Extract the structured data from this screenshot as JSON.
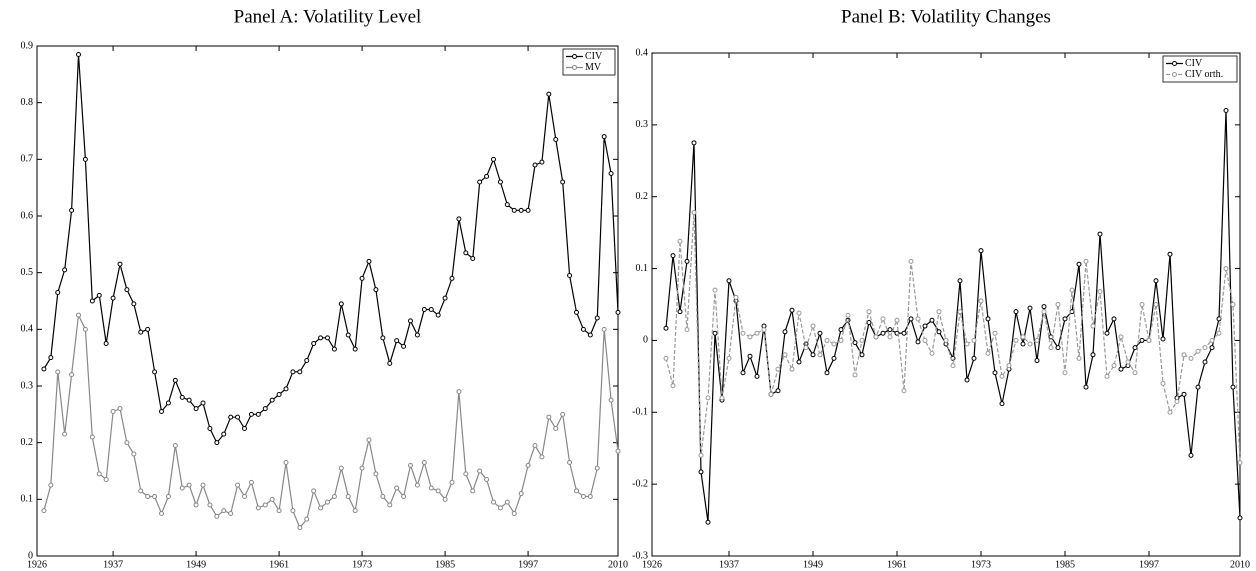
{
  "chart_data": [
    {
      "type": "line",
      "title": "Panel A: Volatility Level",
      "x": [
        1927,
        1928,
        1929,
        1930,
        1931,
        1932,
        1933,
        1934,
        1935,
        1936,
        1937,
        1938,
        1939,
        1940,
        1941,
        1942,
        1943,
        1944,
        1945,
        1946,
        1947,
        1948,
        1949,
        1950,
        1951,
        1952,
        1953,
        1954,
        1955,
        1956,
        1957,
        1958,
        1959,
        1960,
        1961,
        1962,
        1963,
        1964,
        1965,
        1966,
        1967,
        1968,
        1969,
        1970,
        1971,
        1972,
        1973,
        1974,
        1975,
        1976,
        1977,
        1978,
        1979,
        1980,
        1981,
        1982,
        1983,
        1984,
        1985,
        1986,
        1987,
        1988,
        1989,
        1990,
        1991,
        1992,
        1993,
        1994,
        1995,
        1996,
        1997,
        1998,
        1999,
        2000,
        2001,
        2002,
        2003,
        2004,
        2005,
        2006,
        2007,
        2008,
        2009,
        2010
      ],
      "series": [
        {
          "name": "CIV",
          "color": "#000000",
          "dash": false,
          "values": [
            0.33,
            0.35,
            0.465,
            0.505,
            0.61,
            0.885,
            0.7,
            0.45,
            0.46,
            0.375,
            0.455,
            0.515,
            0.47,
            0.445,
            0.395,
            0.4,
            0.325,
            0.255,
            0.27,
            0.31,
            0.28,
            0.275,
            0.26,
            0.27,
            0.225,
            0.2,
            0.215,
            0.245,
            0.245,
            0.225,
            0.25,
            0.25,
            0.26,
            0.275,
            0.285,
            0.295,
            0.325,
            0.325,
            0.345,
            0.375,
            0.385,
            0.385,
            0.365,
            0.445,
            0.39,
            0.365,
            0.49,
            0.52,
            0.47,
            0.385,
            0.34,
            0.38,
            0.37,
            0.415,
            0.39,
            0.435,
            0.435,
            0.425,
            0.455,
            0.49,
            0.595,
            0.535,
            0.525,
            0.66,
            0.67,
            0.7,
            0.66,
            0.62,
            0.61,
            0.61,
            0.61,
            0.69,
            0.695,
            0.815,
            0.735,
            0.66,
            0.495,
            0.43,
            0.4,
            0.39,
            0.42,
            0.74,
            0.675,
            0.43
          ]
        },
        {
          "name": "MV",
          "color": "#888888",
          "dash": false,
          "values": [
            0.08,
            0.125,
            0.325,
            0.215,
            0.32,
            0.425,
            0.4,
            0.21,
            0.145,
            0.135,
            0.255,
            0.26,
            0.2,
            0.18,
            0.115,
            0.105,
            0.105,
            0.075,
            0.105,
            0.195,
            0.12,
            0.125,
            0.09,
            0.125,
            0.09,
            0.07,
            0.08,
            0.075,
            0.125,
            0.105,
            0.13,
            0.085,
            0.09,
            0.1,
            0.08,
            0.165,
            0.08,
            0.05,
            0.065,
            0.115,
            0.085,
            0.095,
            0.105,
            0.155,
            0.105,
            0.08,
            0.155,
            0.205,
            0.145,
            0.105,
            0.09,
            0.12,
            0.105,
            0.16,
            0.125,
            0.165,
            0.12,
            0.115,
            0.1,
            0.13,
            0.29,
            0.145,
            0.115,
            0.15,
            0.135,
            0.095,
            0.085,
            0.095,
            0.075,
            0.11,
            0.16,
            0.195,
            0.175,
            0.245,
            0.225,
            0.25,
            0.165,
            0.115,
            0.105,
            0.105,
            0.155,
            0.4,
            0.275,
            0.185
          ]
        }
      ],
      "xlim": [
        1926,
        2010
      ],
      "xticks": [
        1926,
        1937,
        1949,
        1961,
        1973,
        1985,
        1997,
        2010
      ],
      "ylim": [
        0,
        0.9
      ],
      "yticks": [
        0,
        0.1,
        0.2,
        0.3,
        0.4,
        0.5,
        0.6,
        0.7,
        0.8,
        0.9
      ],
      "legend": "upper right"
    },
    {
      "type": "line",
      "title": "Panel B: Volatility Changes",
      "x": [
        1928,
        1929,
        1930,
        1931,
        1932,
        1933,
        1934,
        1935,
        1936,
        1937,
        1938,
        1939,
        1940,
        1941,
        1942,
        1943,
        1944,
        1945,
        1946,
        1947,
        1948,
        1949,
        1950,
        1951,
        1952,
        1953,
        1954,
        1955,
        1956,
        1957,
        1958,
        1959,
        1960,
        1961,
        1962,
        1963,
        1964,
        1965,
        1966,
        1967,
        1968,
        1969,
        1970,
        1971,
        1972,
        1973,
        1974,
        1975,
        1976,
        1977,
        1978,
        1979,
        1980,
        1981,
        1982,
        1983,
        1984,
        1985,
        1986,
        1987,
        1988,
        1989,
        1990,
        1991,
        1992,
        1993,
        1994,
        1995,
        1996,
        1997,
        1998,
        1999,
        2000,
        2001,
        2002,
        2003,
        2004,
        2005,
        2006,
        2007,
        2008,
        2009,
        2010
      ],
      "series": [
        {
          "name": "CIV",
          "color": "#000000",
          "dash": false,
          "values": [
            0.017,
            0.118,
            0.04,
            0.11,
            0.275,
            -0.183,
            -0.253,
            0.01,
            -0.083,
            0.083,
            0.055,
            -0.045,
            -0.022,
            -0.05,
            0.02,
            -0.075,
            -0.07,
            0.012,
            0.042,
            -0.03,
            -0.005,
            -0.02,
            0.01,
            -0.045,
            -0.025,
            0.015,
            0.028,
            -0.003,
            -0.02,
            0.025,
            0.005,
            0.01,
            0.015,
            0.01,
            0.01,
            0.03,
            -0.002,
            0.02,
            0.028,
            0.012,
            -0.005,
            -0.025,
            0.083,
            -0.055,
            -0.025,
            0.125,
            0.03,
            -0.045,
            -0.088,
            -0.04,
            0.04,
            -0.005,
            0.045,
            -0.028,
            0.047,
            0.005,
            -0.01,
            0.03,
            0.04,
            0.106,
            -0.065,
            -0.02,
            0.148,
            0.01,
            0.03,
            -0.04,
            -0.035,
            -0.01,
            0.0,
            0.0,
            0.083,
            0.002,
            0.12,
            -0.08,
            -0.075,
            -0.16,
            -0.065,
            -0.03,
            -0.01,
            0.03,
            0.32,
            -0.065,
            -0.247
          ]
        },
        {
          "name": "CIV orth.",
          "color": "#999999",
          "dash": true,
          "values": [
            -0.025,
            -0.063,
            0.138,
            0.015,
            0.178,
            -0.16,
            -0.08,
            0.07,
            -0.08,
            -0.025,
            0.06,
            0.01,
            0.005,
            0.01,
            0.015,
            -0.075,
            -0.04,
            -0.02,
            -0.04,
            0.038,
            -0.01,
            0.02,
            -0.02,
            0.0,
            -0.005,
            0.0,
            0.035,
            -0.048,
            0.0,
            0.04,
            0.005,
            0.03,
            0.005,
            0.028,
            -0.07,
            0.11,
            0.03,
            0.0,
            -0.018,
            0.04,
            0.0,
            -0.035,
            0.04,
            -0.005,
            0.0,
            0.055,
            -0.018,
            0.01,
            -0.05,
            -0.035,
            0.0,
            0.005,
            -0.005,
            0.0,
            0.04,
            -0.01,
            0.05,
            -0.045,
            0.07,
            -0.025,
            0.11,
            0.02,
            0.068,
            -0.05,
            -0.035,
            0.005,
            -0.03,
            -0.045,
            0.05,
            0.0,
            0.05,
            -0.06,
            -0.1,
            -0.085,
            -0.02,
            -0.025,
            -0.015,
            -0.01,
            0.0,
            0.01,
            0.1,
            0.05,
            -0.17
          ]
        }
      ],
      "xlim": [
        1926,
        2010
      ],
      "xticks": [
        1926,
        1937,
        1949,
        1961,
        1973,
        1985,
        1997,
        2010
      ],
      "ylim": [
        -0.3,
        0.4
      ],
      "yticks": [
        -0.3,
        -0.2,
        -0.1,
        0,
        0.1,
        0.2,
        0.3,
        0.4
      ],
      "legend": "upper right"
    }
  ]
}
